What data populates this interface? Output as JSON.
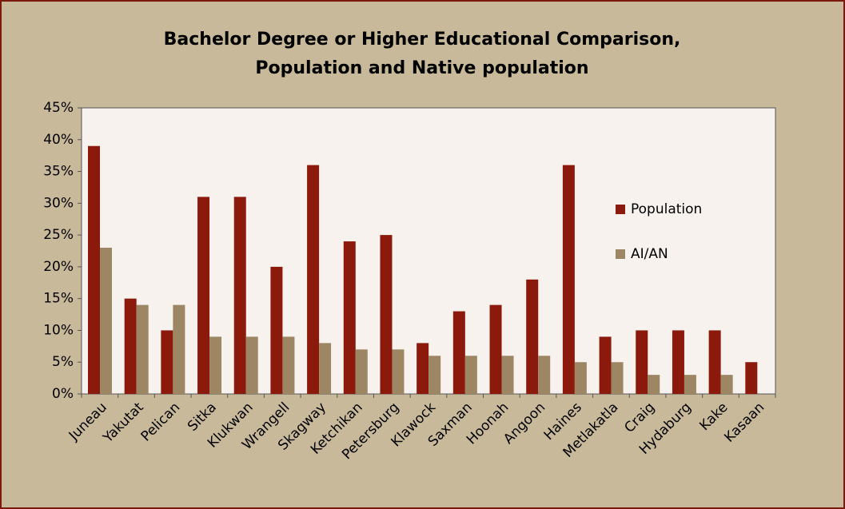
{
  "chart_data": {
    "type": "bar",
    "title": [
      "Bachelor Degree or Higher Educational Comparison,",
      "Population and Native population"
    ],
    "categories": [
      "Juneau",
      "Yakutat",
      "Pelican",
      "Sitka",
      "Klukwan",
      "Wrangell",
      "Skagway",
      "Ketchikan",
      "Petersburg",
      "Klawock",
      "Saxman",
      "Hoonah",
      "Angoon",
      "Haines",
      "Metlakatla",
      "Craig",
      "Hydaburg",
      "Kake",
      "Kasaan"
    ],
    "series": [
      {
        "name": "Population",
        "color": "#8b1a0c",
        "values": [
          39,
          15,
          10,
          31,
          31,
          20,
          36,
          24,
          25,
          8,
          13,
          14,
          18,
          36,
          9,
          10,
          10,
          10,
          5
        ]
      },
      {
        "name": "AI/AN",
        "color": "#9c8663",
        "values": [
          23,
          14,
          14,
          9,
          9,
          9,
          8,
          7,
          7,
          6,
          6,
          6,
          6,
          5,
          5,
          3,
          3,
          3,
          null
        ]
      }
    ],
    "ylim": [
      0,
      45
    ],
    "yticks": [
      {
        "value": 0,
        "label": "0%"
      },
      {
        "value": 5,
        "label": "5%"
      },
      {
        "value": 10,
        "label": "10%"
      },
      {
        "value": 15,
        "label": "15%"
      },
      {
        "value": 20,
        "label": "20%"
      },
      {
        "value": 25,
        "label": "25%"
      },
      {
        "value": 30,
        "label": "30%"
      },
      {
        "value": 35,
        "label": "35%"
      },
      {
        "value": 40,
        "label": "40%"
      },
      {
        "value": 45,
        "label": "45%"
      }
    ],
    "legend": "right"
  }
}
